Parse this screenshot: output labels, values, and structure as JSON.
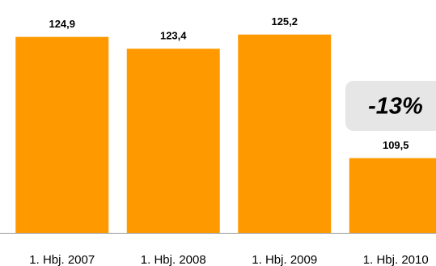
{
  "chart_data": {
    "type": "bar",
    "categories": [
      "1. Hbj. 2007",
      "1. Hbj. 2008",
      "1. Hbj. 2009",
      "1. Hbj. 2010"
    ],
    "values": [
      124.9,
      123.4,
      125.2,
      109.5
    ],
    "value_labels": [
      "124,9",
      "123,4",
      "125,2",
      "109,5"
    ],
    "color": "#ff9900",
    "ylim": [
      100,
      130
    ],
    "annotation": "-13%"
  }
}
